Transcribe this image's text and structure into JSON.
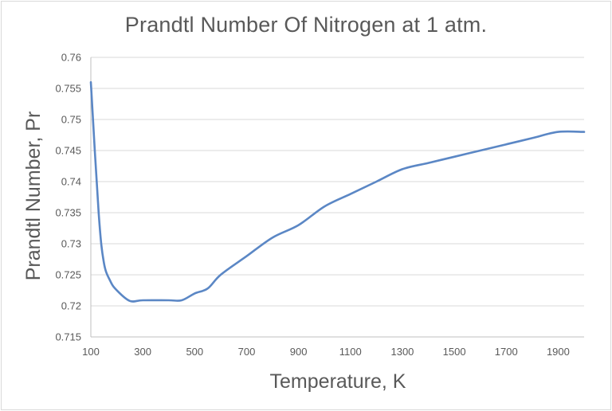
{
  "chart_data": {
    "type": "line",
    "title": "Prandtl Number Of Nitrogen at 1 atm.",
    "xlabel": "Temperature, K",
    "ylabel": "Prandtl Number, Pr",
    "xlim": [
      100,
      2000
    ],
    "ylim": [
      0.715,
      0.76
    ],
    "x_ticks": [
      "100",
      "300",
      "500",
      "700",
      "900",
      "1100",
      "1300",
      "1500",
      "1700",
      "1900"
    ],
    "y_ticks": [
      "0.715",
      "0.72",
      "0.725",
      "0.73",
      "0.735",
      "0.74",
      "0.745",
      "0.75",
      "0.755",
      "0.76"
    ],
    "grid": "horizontal",
    "legend": "none",
    "series": [
      {
        "name": "Prandtl Number",
        "color": "#5b87c5",
        "x": [
          100,
          130,
          150,
          175,
          200,
          250,
          300,
          400,
          450,
          500,
          550,
          600,
          700,
          800,
          900,
          1000,
          1100,
          1200,
          1300,
          1400,
          1500,
          1600,
          1700,
          1800,
          1900,
          2000
        ],
        "y": [
          0.756,
          0.735,
          0.727,
          0.724,
          0.7225,
          0.7208,
          0.7209,
          0.7209,
          0.7209,
          0.722,
          0.7228,
          0.725,
          0.728,
          0.731,
          0.733,
          0.736,
          0.738,
          0.74,
          0.742,
          0.743,
          0.744,
          0.745,
          0.746,
          0.747,
          0.748,
          0.748
        ]
      }
    ]
  },
  "colors": {
    "line": "#5b87c5",
    "grid": "#d9d9d9",
    "text": "#595959",
    "axis": "#bfbfbf"
  }
}
